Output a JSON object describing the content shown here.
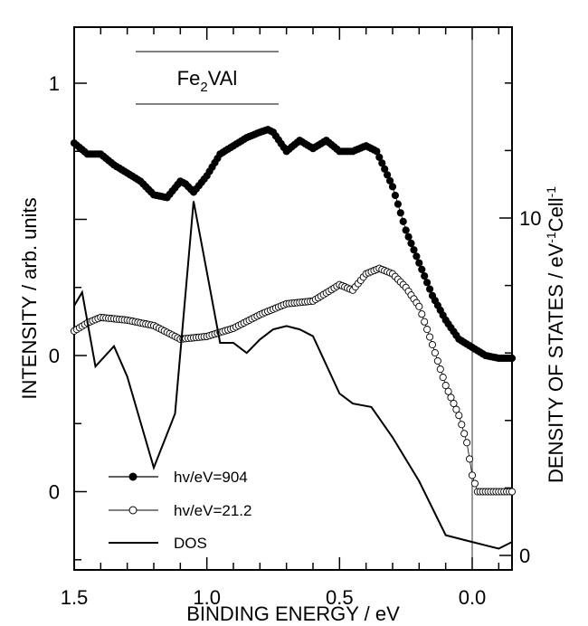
{
  "chart_data": {
    "type": "line",
    "title": "Fe2VAl",
    "title_parts": {
      "base": "Fe",
      "sub": "2",
      "rest": "VAl"
    },
    "xlabel": "BINDING ENERGY / eV",
    "ylabel": "INTENSITY / arb. units",
    "y2label": "DENSITY OF STATES / eV-1Cell-1",
    "y2label_parts": {
      "a": "DENSITY OF STATES / eV",
      "sup1": "-1",
      "b": "Cell",
      "sup2": "-1"
    },
    "xlim": [
      1.5,
      -0.15
    ],
    "x_ticks": [
      1.5,
      1.0,
      0.5,
      0.0
    ],
    "x_tick_labels": [
      "1.5",
      "1.0",
      "0.5",
      "0.0"
    ],
    "y_left_labels": [
      {
        "label": "1",
        "level": 1
      },
      {
        "label": "0",
        "level": 0
      },
      {
        "label": "0",
        "level": -0.5
      }
    ],
    "y_right_ticks": [
      0,
      10
    ],
    "y_right_labels": [
      "0",
      "10"
    ],
    "fermi_level": 0.0,
    "legend": {
      "placement": "bottom-left",
      "entries": [
        "hv/eV=904",
        "hv/eV=21.2",
        "DOS"
      ]
    },
    "series": [
      {
        "name": "hv/eV=904",
        "axis": "left",
        "style": "filled-circle",
        "x": [
          1.5,
          1.45,
          1.4,
          1.35,
          1.3,
          1.25,
          1.2,
          1.15,
          1.1,
          1.08,
          1.05,
          1.0,
          0.95,
          0.9,
          0.85,
          0.8,
          0.77,
          0.75,
          0.7,
          0.65,
          0.6,
          0.55,
          0.5,
          0.45,
          0.4,
          0.36,
          0.3,
          0.25,
          0.2,
          0.15,
          0.1,
          0.05,
          0.0,
          -0.05,
          -0.1,
          -0.15
        ],
        "y": [
          0.78,
          0.74,
          0.74,
          0.7,
          0.67,
          0.64,
          0.59,
          0.58,
          0.64,
          0.63,
          0.6,
          0.66,
          0.74,
          0.77,
          0.8,
          0.82,
          0.83,
          0.82,
          0.75,
          0.79,
          0.76,
          0.79,
          0.75,
          0.75,
          0.77,
          0.75,
          0.62,
          0.46,
          0.34,
          0.22,
          0.13,
          0.06,
          0.03,
          0.0,
          -0.01,
          -0.01
        ]
      },
      {
        "name": "hv/eV=21.2",
        "axis": "left",
        "style": "open-circle",
        "x": [
          1.5,
          1.45,
          1.4,
          1.3,
          1.2,
          1.1,
          1.0,
          0.9,
          0.8,
          0.7,
          0.6,
          0.5,
          0.45,
          0.4,
          0.35,
          0.3,
          0.25,
          0.2,
          0.15,
          0.1,
          0.05,
          0.02,
          0.0,
          -0.02,
          -0.05,
          -0.1,
          -0.15
        ],
        "y": [
          0.09,
          0.12,
          0.14,
          0.13,
          0.11,
          0.06,
          0.07,
          0.1,
          0.15,
          0.19,
          0.2,
          0.26,
          0.24,
          0.3,
          0.32,
          0.3,
          0.25,
          0.18,
          0.04,
          -0.11,
          -0.22,
          -0.32,
          -0.44,
          -0.5,
          -0.5,
          -0.5,
          -0.5
        ]
      },
      {
        "name": "DOS",
        "axis": "right",
        "style": "solid-line",
        "x": [
          1.5,
          1.47,
          1.42,
          1.35,
          1.3,
          1.2,
          1.12,
          1.05,
          1.0,
          0.95,
          0.9,
          0.85,
          0.8,
          0.75,
          0.7,
          0.65,
          0.6,
          0.5,
          0.45,
          0.38,
          0.3,
          0.2,
          0.1,
          0.05,
          0.0,
          -0.05,
          -0.1,
          -0.15
        ],
        "y": [
          7.4,
          7.8,
          5.6,
          6.2,
          5.3,
          2.6,
          4.2,
          10.5,
          8.4,
          6.3,
          6.3,
          6.0,
          6.4,
          6.7,
          6.8,
          6.7,
          6.5,
          4.8,
          4.5,
          4.4,
          3.5,
          2.2,
          0.6,
          0.5,
          0.4,
          0.3,
          0.2,
          0.4
        ]
      }
    ]
  }
}
